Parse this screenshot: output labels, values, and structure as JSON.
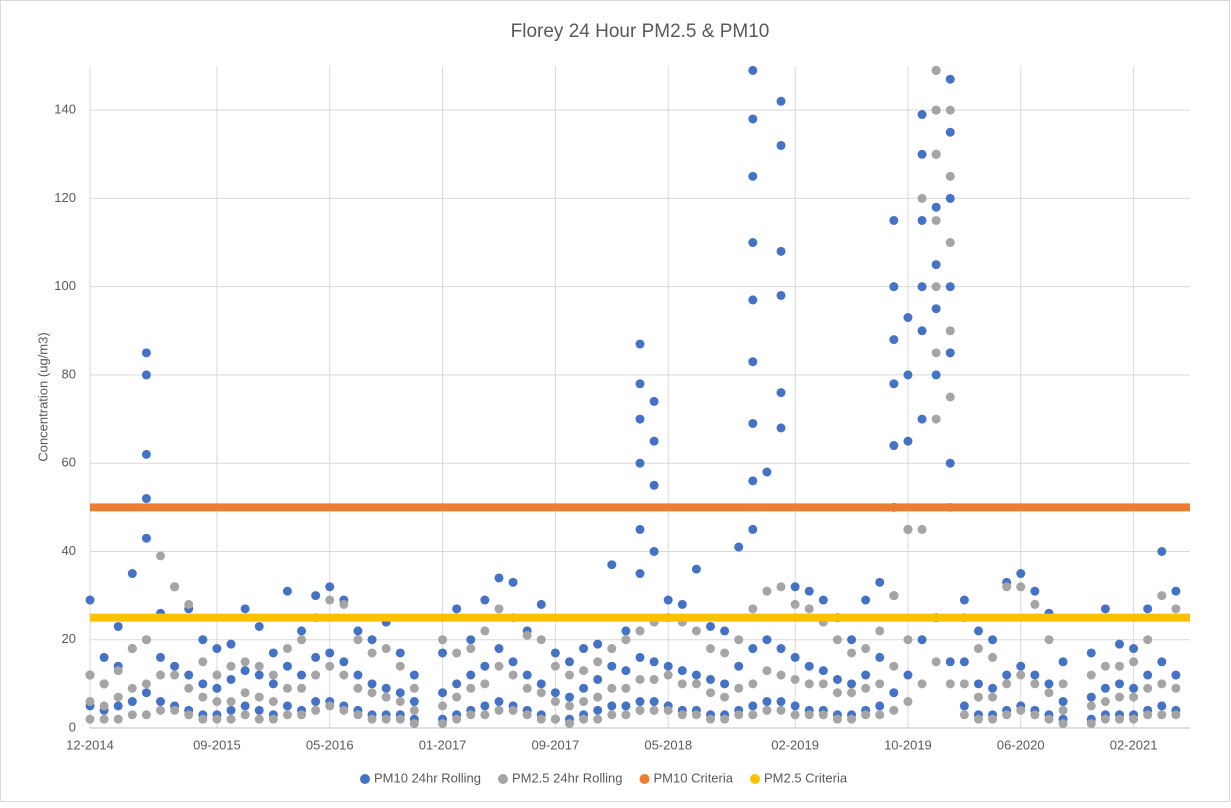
{
  "chart_data": {
    "type": "scatter",
    "title": "Florey 24 Hour PM2.5 & PM10",
    "y_label": "Concentration (ug/m3)",
    "ylim": [
      0,
      150
    ],
    "yticks": [
      0,
      20,
      40,
      60,
      80,
      100,
      120,
      140
    ],
    "xlim": [
      "2014-12",
      "2021-06"
    ],
    "xticks": [
      {
        "value": "2014-12",
        "label": "12-2014"
      },
      {
        "value": "2015-09",
        "label": "09-2015"
      },
      {
        "value": "2016-05",
        "label": "05-2016"
      },
      {
        "value": "2017-01",
        "label": "01-2017"
      },
      {
        "value": "2017-09",
        "label": "09-2017"
      },
      {
        "value": "2018-05",
        "label": "05-2018"
      },
      {
        "value": "2019-02",
        "label": "02-2019"
      },
      {
        "value": "2019-10",
        "label": "10-2019"
      },
      {
        "value": "2020-06",
        "label": "06-2020"
      },
      {
        "value": "2021-02",
        "label": "02-2021"
      }
    ],
    "grid": true,
    "legend": "bottom",
    "series": [
      {
        "name": "PM10 24hr Rolling",
        "color": "#4472c4",
        "mode": "points",
        "x": [
          "2014-12",
          "2014-12",
          "2014-12",
          "2015-01",
          "2015-01",
          "2015-01",
          "2015-02",
          "2015-02",
          "2015-02",
          "2015-03",
          "2015-03",
          "2015-03",
          "2015-04",
          "2015-04",
          "2015-04",
          "2015-04",
          "2015-04",
          "2015-04",
          "2015-04",
          "2015-05",
          "2015-05",
          "2015-05",
          "2015-06",
          "2015-06",
          "2015-06",
          "2015-07",
          "2015-07",
          "2015-07",
          "2015-08",
          "2015-08",
          "2015-08",
          "2015-09",
          "2015-09",
          "2015-09",
          "2015-10",
          "2015-10",
          "2015-10",
          "2015-11",
          "2015-11",
          "2015-11",
          "2015-12",
          "2015-12",
          "2015-12",
          "2016-01",
          "2016-01",
          "2016-01",
          "2016-02",
          "2016-02",
          "2016-02",
          "2016-03",
          "2016-03",
          "2016-03",
          "2016-04",
          "2016-04",
          "2016-04",
          "2016-05",
          "2016-05",
          "2016-05",
          "2016-06",
          "2016-06",
          "2016-06",
          "2016-07",
          "2016-07",
          "2016-07",
          "2016-08",
          "2016-08",
          "2016-08",
          "2016-09",
          "2016-09",
          "2016-09",
          "2016-10",
          "2016-10",
          "2016-10",
          "2016-11",
          "2016-11",
          "2016-11",
          "2017-01",
          "2017-01",
          "2017-01",
          "2017-02",
          "2017-02",
          "2017-02",
          "2017-03",
          "2017-03",
          "2017-03",
          "2017-04",
          "2017-04",
          "2017-04",
          "2017-05",
          "2017-05",
          "2017-05",
          "2017-06",
          "2017-06",
          "2017-06",
          "2017-07",
          "2017-07",
          "2017-07",
          "2017-08",
          "2017-08",
          "2017-08",
          "2017-09",
          "2017-09",
          "2017-09",
          "2017-10",
          "2017-10",
          "2017-10",
          "2017-11",
          "2017-11",
          "2017-11",
          "2017-12",
          "2017-12",
          "2017-12",
          "2018-01",
          "2018-01",
          "2018-01",
          "2018-02",
          "2018-02",
          "2018-02",
          "2018-03",
          "2018-03",
          "2018-03",
          "2018-03",
          "2018-03",
          "2018-03",
          "2018-03",
          "2018-03",
          "2018-04",
          "2018-04",
          "2018-04",
          "2018-04",
          "2018-04",
          "2018-04",
          "2018-05",
          "2018-05",
          "2018-05",
          "2018-06",
          "2018-06",
          "2018-06",
          "2018-07",
          "2018-07",
          "2018-07",
          "2018-08",
          "2018-08",
          "2018-08",
          "2018-09",
          "2018-09",
          "2018-09",
          "2018-10",
          "2018-10",
          "2018-10",
          "2018-11",
          "2018-11",
          "2018-11",
          "2018-11",
          "2018-11",
          "2018-11",
          "2018-11",
          "2018-11",
          "2018-11",
          "2018-11",
          "2018-11",
          "2018-12",
          "2018-12",
          "2018-12",
          "2019-01",
          "2019-01",
          "2019-01",
          "2019-01",
          "2019-01",
          "2019-01",
          "2019-01",
          "2019-01",
          "2019-02",
          "2019-02",
          "2019-02",
          "2019-03",
          "2019-03",
          "2019-03",
          "2019-04",
          "2019-04",
          "2019-04",
          "2019-05",
          "2019-05",
          "2019-05",
          "2019-06",
          "2019-06",
          "2019-06",
          "2019-07",
          "2019-07",
          "2019-07",
          "2019-08",
          "2019-08",
          "2019-08",
          "2019-09",
          "2019-09",
          "2019-09",
          "2019-09",
          "2019-09",
          "2019-09",
          "2019-09",
          "2019-09",
          "2019-10",
          "2019-10",
          "2019-10",
          "2019-10",
          "2019-10",
          "2019-11",
          "2019-11",
          "2019-11",
          "2019-11",
          "2019-11",
          "2019-11",
          "2019-11",
          "2019-12",
          "2019-12",
          "2019-12",
          "2019-12",
          "2019-12",
          "2019-12",
          "2019-12",
          "2019-12",
          "2020-01",
          "2020-01",
          "2020-01",
          "2020-01",
          "2020-01",
          "2020-01",
          "2020-01",
          "2020-02",
          "2020-02",
          "2020-02",
          "2020-03",
          "2020-03",
          "2020-03",
          "2020-04",
          "2020-04",
          "2020-04",
          "2020-05",
          "2020-05",
          "2020-05",
          "2020-06",
          "2020-06",
          "2020-06",
          "2020-07",
          "2020-07",
          "2020-07",
          "2020-08",
          "2020-08",
          "2020-08",
          "2020-09",
          "2020-09",
          "2020-09",
          "2020-11",
          "2020-11",
          "2020-11",
          "2020-12",
          "2020-12",
          "2020-12",
          "2021-01",
          "2021-01",
          "2021-01",
          "2021-02",
          "2021-02",
          "2021-02",
          "2021-03",
          "2021-03",
          "2021-03",
          "2021-04",
          "2021-04",
          "2021-04",
          "2021-05",
          "2021-05",
          "2021-05"
        ],
        "values": [
          5,
          12,
          29,
          4,
          10,
          16,
          5,
          14,
          23,
          6,
          18,
          35,
          8,
          20,
          85,
          80,
          62,
          52,
          43,
          6,
          16,
          26,
          5,
          14,
          32,
          4,
          12,
          27,
          3,
          10,
          20,
          3,
          9,
          18,
          4,
          11,
          19,
          5,
          13,
          27,
          4,
          12,
          23,
          3,
          10,
          17,
          5,
          14,
          31,
          4,
          12,
          22,
          6,
          16,
          30,
          6,
          17,
          32,
          5,
          15,
          29,
          4,
          12,
          22,
          3,
          10,
          20,
          3,
          9,
          24,
          3,
          8,
          17,
          2,
          6,
          12,
          2,
          8,
          17,
          3,
          10,
          27,
          4,
          12,
          20,
          5,
          14,
          29,
          6,
          18,
          34,
          5,
          15,
          33,
          4,
          12,
          22,
          3,
          10,
          28,
          2,
          8,
          17,
          2,
          7,
          15,
          3,
          9,
          18,
          4,
          11,
          19,
          5,
          14,
          37,
          5,
          13,
          22,
          6,
          16,
          87,
          78,
          70,
          60,
          45,
          35,
          6,
          15,
          74,
          65,
          55,
          40,
          5,
          14,
          29,
          4,
          13,
          28,
          4,
          12,
          36,
          3,
          11,
          23,
          3,
          10,
          22,
          4,
          14,
          41,
          5,
          18,
          149,
          138,
          125,
          110,
          97,
          83,
          69,
          56,
          45,
          6,
          20,
          58,
          6,
          18,
          142,
          132,
          108,
          98,
          76,
          68,
          5,
          16,
          32,
          4,
          14,
          31,
          4,
          13,
          29,
          3,
          11,
          25,
          3,
          10,
          20,
          4,
          12,
          29,
          5,
          16,
          33,
          8,
          30,
          115,
          100,
          88,
          78,
          64,
          50,
          12,
          45,
          93,
          80,
          65,
          20,
          70,
          139,
          130,
          115,
          100,
          90,
          25,
          80,
          149,
          140,
          130,
          118,
          105,
          95,
          15,
          60,
          147,
          135,
          120,
          100,
          85,
          5,
          15,
          29,
          3,
          10,
          22,
          3,
          9,
          20,
          4,
          12,
          33,
          5,
          14,
          35,
          4,
          12,
          31,
          3,
          10,
          26,
          2,
          6,
          15,
          2,
          7,
          17,
          3,
          9,
          27,
          3,
          10,
          19,
          3,
          9,
          18,
          4,
          12,
          27,
          5,
          15,
          40,
          4,
          12,
          31
        ]
      },
      {
        "name": "PM2.5 24hr Rolling",
        "color": "#a5a5a5",
        "mode": "points",
        "x": [
          "2014-12",
          "2014-12",
          "2014-12",
          "2015-01",
          "2015-01",
          "2015-01",
          "2015-02",
          "2015-02",
          "2015-02",
          "2015-03",
          "2015-03",
          "2015-03",
          "2015-04",
          "2015-04",
          "2015-04",
          "2015-05",
          "2015-05",
          "2015-05",
          "2015-06",
          "2015-06",
          "2015-06",
          "2015-07",
          "2015-07",
          "2015-07",
          "2015-08",
          "2015-08",
          "2015-08",
          "2015-09",
          "2015-09",
          "2015-09",
          "2015-10",
          "2015-10",
          "2015-10",
          "2015-11",
          "2015-11",
          "2015-11",
          "2015-12",
          "2015-12",
          "2015-12",
          "2016-01",
          "2016-01",
          "2016-01",
          "2016-02",
          "2016-02",
          "2016-02",
          "2016-03",
          "2016-03",
          "2016-03",
          "2016-04",
          "2016-04",
          "2016-04",
          "2016-05",
          "2016-05",
          "2016-05",
          "2016-06",
          "2016-06",
          "2016-06",
          "2016-07",
          "2016-07",
          "2016-07",
          "2016-08",
          "2016-08",
          "2016-08",
          "2016-09",
          "2016-09",
          "2016-09",
          "2016-10",
          "2016-10",
          "2016-10",
          "2016-11",
          "2016-11",
          "2016-11",
          "2017-01",
          "2017-01",
          "2017-01",
          "2017-02",
          "2017-02",
          "2017-02",
          "2017-03",
          "2017-03",
          "2017-03",
          "2017-04",
          "2017-04",
          "2017-04",
          "2017-05",
          "2017-05",
          "2017-05",
          "2017-06",
          "2017-06",
          "2017-06",
          "2017-07",
          "2017-07",
          "2017-07",
          "2017-08",
          "2017-08",
          "2017-08",
          "2017-09",
          "2017-09",
          "2017-09",
          "2017-10",
          "2017-10",
          "2017-10",
          "2017-11",
          "2017-11",
          "2017-11",
          "2017-12",
          "2017-12",
          "2017-12",
          "2018-01",
          "2018-01",
          "2018-01",
          "2018-02",
          "2018-02",
          "2018-02",
          "2018-03",
          "2018-03",
          "2018-03",
          "2018-04",
          "2018-04",
          "2018-04",
          "2018-05",
          "2018-05",
          "2018-05",
          "2018-06",
          "2018-06",
          "2018-06",
          "2018-07",
          "2018-07",
          "2018-07",
          "2018-08",
          "2018-08",
          "2018-08",
          "2018-09",
          "2018-09",
          "2018-09",
          "2018-10",
          "2018-10",
          "2018-10",
          "2018-11",
          "2018-11",
          "2018-11",
          "2018-12",
          "2018-12",
          "2018-12",
          "2019-01",
          "2019-01",
          "2019-01",
          "2019-02",
          "2019-02",
          "2019-02",
          "2019-03",
          "2019-03",
          "2019-03",
          "2019-04",
          "2019-04",
          "2019-04",
          "2019-05",
          "2019-05",
          "2019-05",
          "2019-06",
          "2019-06",
          "2019-06",
          "2019-07",
          "2019-07",
          "2019-07",
          "2019-08",
          "2019-08",
          "2019-08",
          "2019-09",
          "2019-09",
          "2019-09",
          "2019-10",
          "2019-10",
          "2019-10",
          "2019-11",
          "2019-11",
          "2019-11",
          "2019-12",
          "2019-12",
          "2019-12",
          "2019-12",
          "2019-12",
          "2019-12",
          "2019-12",
          "2019-12",
          "2020-01",
          "2020-01",
          "2020-01",
          "2020-01",
          "2020-01",
          "2020-01",
          "2020-01",
          "2020-02",
          "2020-02",
          "2020-02",
          "2020-03",
          "2020-03",
          "2020-03",
          "2020-04",
          "2020-04",
          "2020-04",
          "2020-05",
          "2020-05",
          "2020-05",
          "2020-06",
          "2020-06",
          "2020-06",
          "2020-07",
          "2020-07",
          "2020-07",
          "2020-08",
          "2020-08",
          "2020-08",
          "2020-09",
          "2020-09",
          "2020-09",
          "2020-11",
          "2020-11",
          "2020-11",
          "2020-12",
          "2020-12",
          "2020-12",
          "2021-01",
          "2021-01",
          "2021-01",
          "2021-02",
          "2021-02",
          "2021-02",
          "2021-03",
          "2021-03",
          "2021-03",
          "2021-04",
          "2021-04",
          "2021-04",
          "2021-05",
          "2021-05",
          "2021-05"
        ],
        "values": [
          2,
          6,
          12,
          2,
          5,
          10,
          2,
          7,
          13,
          3,
          9,
          18,
          3,
          10,
          20,
          4,
          12,
          39,
          4,
          12,
          32,
          3,
          9,
          28,
          2,
          7,
          15,
          2,
          6,
          12,
          2,
          6,
          14,
          3,
          8,
          15,
          2,
          7,
          14,
          2,
          6,
          12,
          3,
          9,
          18,
          3,
          9,
          20,
          4,
          12,
          25,
          5,
          14,
          29,
          4,
          12,
          28,
          3,
          9,
          20,
          2,
          8,
          17,
          2,
          7,
          18,
          2,
          6,
          14,
          1,
          4,
          9,
          1,
          5,
          20,
          2,
          7,
          17,
          3,
          9,
          18,
          3,
          10,
          22,
          4,
          14,
          27,
          4,
          12,
          25,
          3,
          9,
          21,
          2,
          8,
          20,
          2,
          6,
          14,
          1,
          5,
          12,
          2,
          6,
          13,
          2,
          7,
          15,
          3,
          9,
          18,
          3,
          9,
          20,
          4,
          11,
          22,
          4,
          11,
          24,
          4,
          12,
          25,
          3,
          10,
          24,
          3,
          10,
          22,
          2,
          8,
          18,
          2,
          7,
          17,
          3,
          9,
          20,
          3,
          10,
          27,
          4,
          13,
          31,
          4,
          12,
          32,
          3,
          11,
          28,
          3,
          10,
          27,
          3,
          10,
          24,
          2,
          8,
          20,
          2,
          8,
          17,
          3,
          9,
          18,
          3,
          10,
          22,
          4,
          14,
          30,
          6,
          20,
          45,
          10,
          45,
          120,
          15,
          70,
          149,
          140,
          130,
          115,
          100,
          85,
          10,
          50,
          140,
          125,
          110,
          90,
          75,
          3,
          10,
          25,
          2,
          7,
          18,
          2,
          7,
          16,
          3,
          10,
          32,
          4,
          12,
          32,
          3,
          10,
          28,
          2,
          8,
          20,
          1,
          4,
          10,
          1,
          5,
          12,
          2,
          6,
          14,
          2,
          7,
          14,
          2,
          7,
          15,
          3,
          9,
          20,
          3,
          10,
          30,
          3,
          9,
          27
        ]
      },
      {
        "name": "PM10 Criteria",
        "color": "#ed7d31",
        "mode": "line",
        "x": [
          "2014-12",
          "2021-06"
        ],
        "values": [
          50,
          50
        ]
      },
      {
        "name": "PM2.5 Criteria",
        "color": "#ffc000",
        "mode": "line",
        "x": [
          "2014-12",
          "2021-06"
        ],
        "values": [
          25,
          25
        ]
      }
    ]
  }
}
